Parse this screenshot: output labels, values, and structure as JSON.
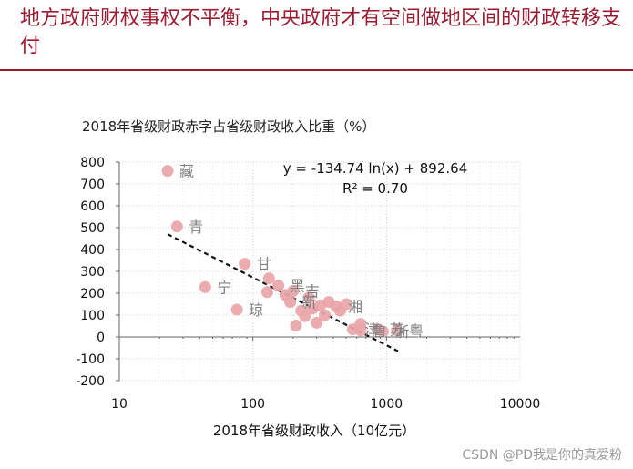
{
  "slide": {
    "headline": "地方政府财权事权不平衡，中央政府才有空间做地区间的财政转移支付",
    "watermark": "CSDN @PD我是你的真爱粉"
  },
  "chart_data": {
    "type": "scatter",
    "title": "2018年省级财政赤字占省级财政收入比重（%）",
    "xlabel": "2018年省级财政收入（10亿元）",
    "ylabel": "",
    "xscale": "log",
    "xlim": [
      10,
      10000
    ],
    "ylim": [
      -200,
      800
    ],
    "x_ticks": [
      10,
      100,
      1000,
      10000
    ],
    "y_ticks": [
      -200,
      -100,
      0,
      100,
      200,
      300,
      400,
      500,
      600,
      700,
      800
    ],
    "grid": true,
    "point_color": "#e8a5a8",
    "label_color": "#808080",
    "trendline": {
      "equation": "y = -134.74 ln(x) + 892.64",
      "r2_text": "R² = 0.70",
      "slope": -134.74,
      "intercept": 892.64,
      "x_range": [
        23,
        1220
      ],
      "style": "dashed"
    },
    "points": [
      {
        "label": "藏",
        "x": 23,
        "y": 760
      },
      {
        "label": "青",
        "x": 27,
        "y": 505
      },
      {
        "label": "宁",
        "x": 44,
        "y": 228
      },
      {
        "label": "琼",
        "x": 76,
        "y": 125
      },
      {
        "label": "甘",
        "x": 87,
        "y": 335
      },
      {
        "label": "",
        "x": 128,
        "y": 205
      },
      {
        "label": "",
        "x": 132,
        "y": 268
      },
      {
        "label": "黑",
        "x": 155,
        "y": 235
      },
      {
        "label": "",
        "x": 175,
        "y": 192
      },
      {
        "label": "新",
        "x": 190,
        "y": 160
      },
      {
        "label": "吉",
        "x": 200,
        "y": 210
      },
      {
        "label": "",
        "x": 210,
        "y": 52
      },
      {
        "label": "",
        "x": 230,
        "y": 120
      },
      {
        "label": "",
        "x": 245,
        "y": 95
      },
      {
        "label": "",
        "x": 262,
        "y": 180
      },
      {
        "label": "",
        "x": 280,
        "y": 130
      },
      {
        "label": "",
        "x": 300,
        "y": 65
      },
      {
        "label": "",
        "x": 320,
        "y": 145
      },
      {
        "label": "",
        "x": 345,
        "y": 100
      },
      {
        "label": "",
        "x": 370,
        "y": 160
      },
      {
        "label": "湘",
        "x": 420,
        "y": 140
      },
      {
        "label": "",
        "x": 450,
        "y": 120
      },
      {
        "label": "",
        "x": 500,
        "y": 150
      },
      {
        "label": "津",
        "x": 560,
        "y": 35
      },
      {
        "label": "",
        "x": 640,
        "y": 60
      },
      {
        "label": "鲁",
        "x": 640,
        "y": 30
      },
      {
        "label": "苏",
        "x": 860,
        "y": 35
      },
      {
        "label": "浙",
        "x": 940,
        "y": 25
      },
      {
        "label": "粤",
        "x": 1200,
        "y": 30
      }
    ]
  }
}
